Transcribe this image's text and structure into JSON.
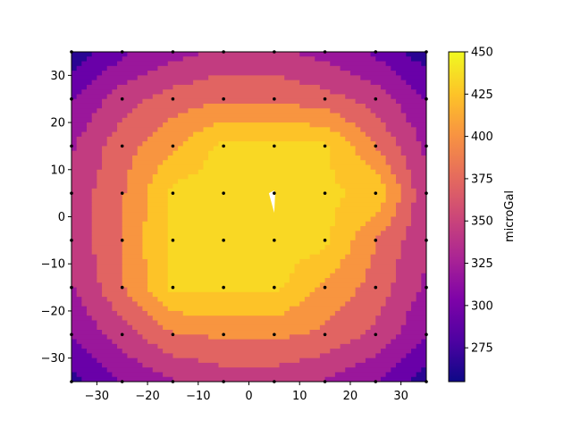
{
  "chart_data": {
    "type": "contour",
    "title": "",
    "xlabel": "",
    "ylabel": "",
    "xlim": [
      -35,
      35
    ],
    "ylim": [
      -35,
      35
    ],
    "xticks": [
      -30,
      -20,
      -10,
      0,
      10,
      20,
      30
    ],
    "yticks": [
      -30,
      -20,
      -10,
      0,
      10,
      20,
      30
    ],
    "colormap": "plasma",
    "colorbar": {
      "label": "microGal",
      "range": [
        255,
        450
      ],
      "ticks": [
        275,
        300,
        325,
        350,
        375,
        400,
        425,
        450
      ]
    },
    "levels": [
      {
        "range": [
          250,
          275
        ],
        "color": "#2a0593"
      },
      {
        "range": [
          275,
          300
        ],
        "color": "#6900a8"
      },
      {
        "range": [
          300,
          325
        ],
        "color": "#9a179b"
      },
      {
        "range": [
          325,
          350
        ],
        "color": "#c23c80"
      },
      {
        "range": [
          350,
          375
        ],
        "color": "#e16462"
      },
      {
        "range": [
          375,
          400
        ],
        "color": "#f89540"
      },
      {
        "range": [
          400,
          425
        ],
        "color": "#fdc328"
      },
      {
        "range": [
          425,
          450
        ],
        "color": "#f9d824"
      }
    ],
    "samples": {
      "x": [
        -35,
        -25,
        -15,
        -5,
        5,
        15,
        25,
        35
      ],
      "y": [
        35,
        25,
        15,
        5,
        -5,
        -15,
        -25,
        -35
      ],
      "z": [
        [
          255,
          295,
          315,
          330,
          332,
          315,
          295,
          260
        ],
        [
          300,
          338,
          362,
          372,
          370,
          360,
          338,
          300
        ],
        [
          322,
          365,
          395,
          432,
          432,
          430,
          375,
          320
        ],
        [
          334,
          372,
          432,
          440,
          445,
          430,
          420,
          330
        ],
        [
          334,
          375,
          432,
          440,
          440,
          432,
          375,
          328
        ],
        [
          322,
          372,
          432,
          432,
          432,
          395,
          365,
          320
        ],
        [
          300,
          338,
          372,
          380,
          380,
          370,
          345,
          300
        ],
        [
          265,
          300,
          322,
          335,
          335,
          322,
          300,
          260
        ]
      ],
      "missing": [
        [
          -35,
          35
        ],
        [
          5,
          5
        ]
      ]
    }
  }
}
